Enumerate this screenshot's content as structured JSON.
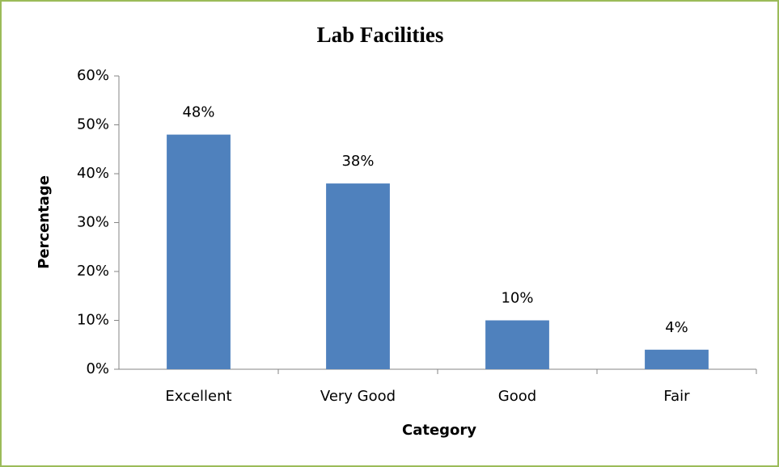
{
  "chart_data": {
    "type": "bar",
    "title": "Lab Facilities",
    "x_label": "Category",
    "y_label": "Percentage",
    "categories": [
      "Excellent",
      "Very Good",
      "Good",
      "Fair"
    ],
    "values": [
      48,
      38,
      10,
      4
    ],
    "value_labels": [
      "48%",
      "38%",
      "10%",
      "4%"
    ],
    "color": "#4f81bd",
    "ylim": [
      0,
      60
    ],
    "yticks": [
      {
        "value": 0,
        "label": "0%"
      },
      {
        "value": 10,
        "label": "10%"
      },
      {
        "value": 20,
        "label": "20%"
      },
      {
        "value": 30,
        "label": "30%"
      },
      {
        "value": 40,
        "label": "40%"
      },
      {
        "value": 50,
        "label": "50%"
      },
      {
        "value": 60,
        "label": "60%"
      }
    ],
    "grid": false
  }
}
